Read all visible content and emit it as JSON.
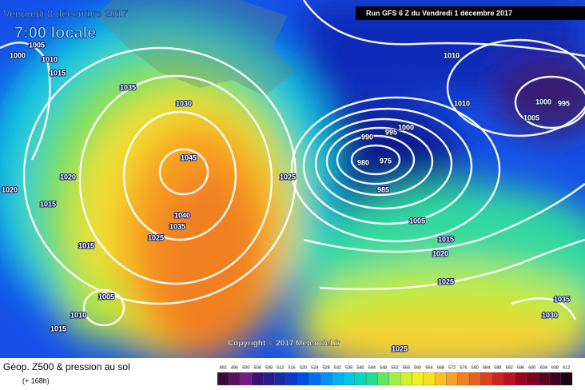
{
  "header": {
    "date": "Vendredi 8 décembre 2017",
    "time": "7:00 locale",
    "run": "Run GFS 6 Z du Vendredi 1 décembre 2017"
  },
  "map": {
    "copyright": "Copyright © 2017 Meteociel.fr",
    "isobar_labels": [
      "1005",
      "1000",
      "1010",
      "1015",
      "1035",
      "1030",
      "1020",
      "1020",
      "1015",
      "1045",
      "1040",
      "1035",
      "1025",
      "1015",
      "1005",
      "1010",
      "1015",
      "1025",
      "1010",
      "1010",
      "1000",
      "995",
      "1005",
      "1000",
      "995",
      "990",
      "980",
      "975",
      "985",
      "1005",
      "1015",
      "1020",
      "1025",
      "1035",
      "1030",
      "1025"
    ]
  },
  "footer": {
    "title": "Géop. Z500 & pression au sol",
    "lead": "(+ 168h)"
  },
  "legend": {
    "labels": [
      "492",
      "496",
      "500",
      "504",
      "508",
      "512",
      "516",
      "520",
      "524",
      "528",
      "532",
      "536",
      "540",
      "544",
      "548",
      "552",
      "556",
      "560",
      "564",
      "568",
      "572",
      "576",
      "580",
      "584",
      "588",
      "592",
      "596",
      "600",
      "604",
      "608",
      "612"
    ],
    "colors": [
      "#3a0a3a",
      "#5a1060",
      "#7a1a8a",
      "#3d1070",
      "#2a1a90",
      "#1a2aa8",
      "#0a3ac8",
      "#0050e0",
      "#0070f0",
      "#0090f8",
      "#00b0f8",
      "#00c8e8",
      "#00d8c0",
      "#20e090",
      "#60e860",
      "#a0f040",
      "#d0f030",
      "#f0f020",
      "#f8e020",
      "#f8c020",
      "#f8a020",
      "#f08020",
      "#e86020",
      "#e04020",
      "#d02020",
      "#c01020",
      "#a00020",
      "#800020",
      "#600020",
      "#400020",
      "#200010"
    ]
  }
}
